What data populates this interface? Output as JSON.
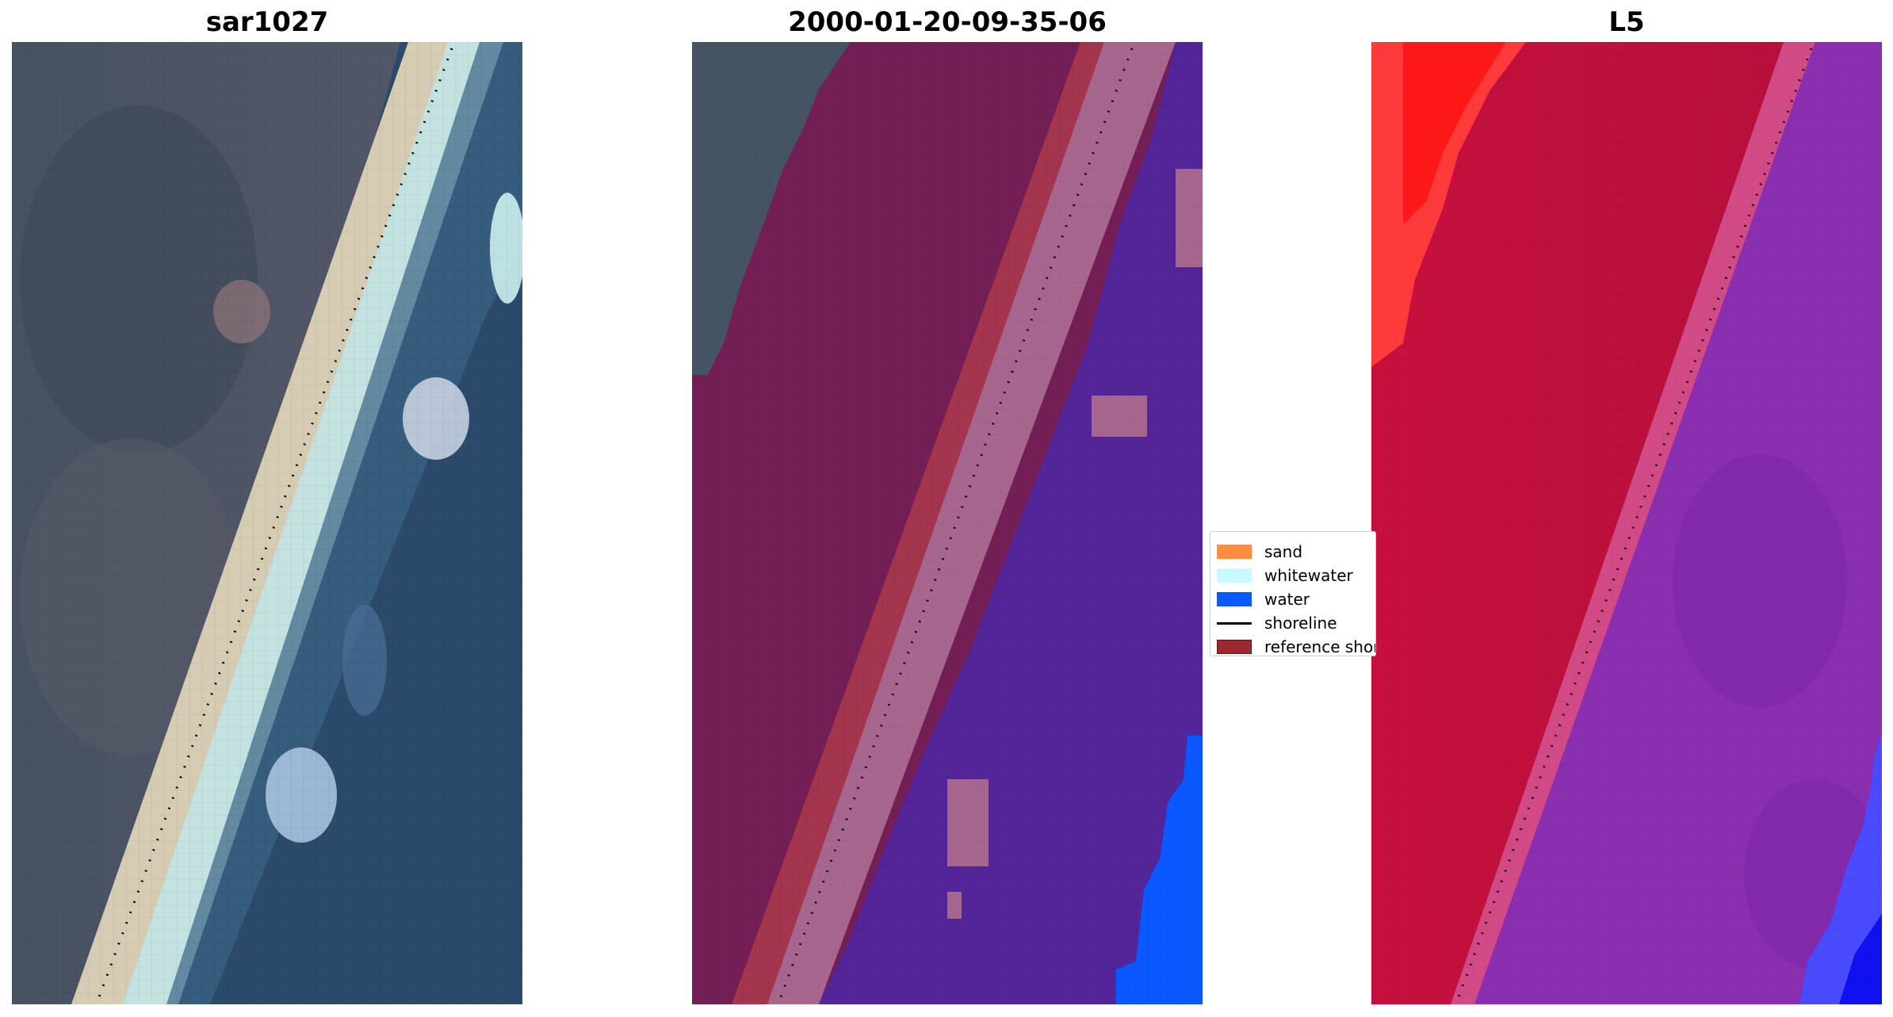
{
  "panels": [
    {
      "title": "sar1027"
    },
    {
      "title": "2000-01-20-09-35-06"
    },
    {
      "title": "L5"
    }
  ],
  "legend": {
    "items": [
      {
        "label": "sand",
        "color": "#ff8c3f",
        "kind": "patch"
      },
      {
        "label": "whitewater",
        "color": "#c8fbff",
        "kind": "patch"
      },
      {
        "label": "water",
        "color": "#0a58ff",
        "kind": "patch"
      },
      {
        "label": "shoreline",
        "color": "#000000",
        "kind": "line"
      },
      {
        "label": "reference shoreline",
        "color": "#9a2a30",
        "kind": "patch"
      }
    ]
  },
  "colors": {
    "rgb_land": "#4c5565",
    "rgb_sand": "#dcd3bf",
    "rgb_whitewater": "#c6e6e6",
    "rgb_water": "#2c4a6c",
    "class_land": "#731f56",
    "class_reference": "#ad3a4c",
    "class_whitewater": "#a7668e",
    "class_water": "#542499",
    "class_water_bright": "#0a58ff",
    "index_land": "#c20f3a",
    "index_land_bright": "#ff2020",
    "index_shore": "#d24a86",
    "index_water": "#8a2fb0",
    "index_water_bright": "#3a3aff"
  }
}
